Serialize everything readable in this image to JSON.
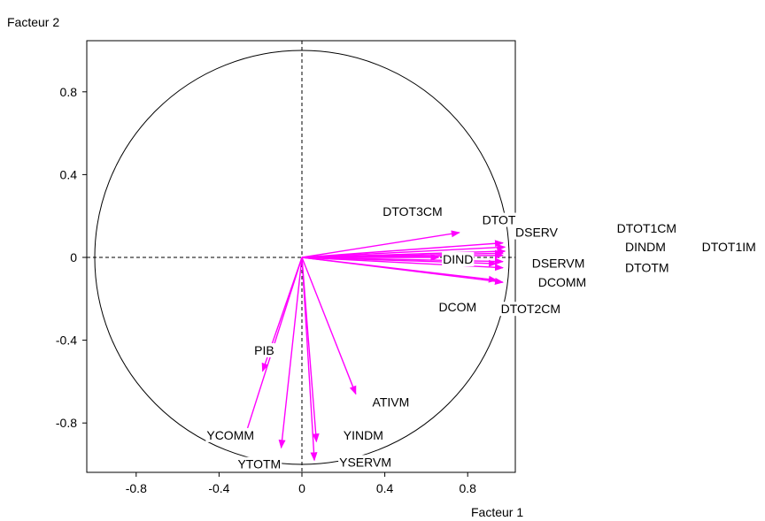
{
  "chart_data": {
    "type": "scatter",
    "subtype": "correlation-circle",
    "title": "",
    "xlabel": "Facteur 1",
    "ylabel": "Facteur 2",
    "xlim": [
      -1.05,
      1.05
    ],
    "ylim": [
      -1.05,
      1.02
    ],
    "xticks": [
      -0.8,
      -0.4,
      0,
      0.4,
      0.8
    ],
    "xtick_labels": [
      "-0.8",
      "-0.4",
      "0",
      "0.4",
      "0.8"
    ],
    "yticks": [
      -0.8,
      -0.4,
      0,
      0.4,
      0.8
    ],
    "ytick_labels": [
      "-0.8",
      "-0.4",
      "0",
      "0.4",
      "0.8"
    ],
    "grid": false,
    "unit_circle": true,
    "arrow_color": "#ff00ff",
    "axis_color": "#000000",
    "variables": [
      {
        "label": "DTOT3CM",
        "x": 0.76,
        "y": 0.12
      },
      {
        "label": "DTOT",
        "x": 0.97,
        "y": 0.07
      },
      {
        "label": "DSERV",
        "x": 0.98,
        "y": 0.05
      },
      {
        "label": "DTOT1CM",
        "x": 0.98,
        "y": 0.03
      },
      {
        "label": "DINDM",
        "x": 0.97,
        "y": 0.02
      },
      {
        "label": "DTOT1IM",
        "x": 0.97,
        "y": 0.01
      },
      {
        "label": "DIND",
        "x": 0.66,
        "y": 0.0
      },
      {
        "label": "DSERVM",
        "x": 0.97,
        "y": -0.02
      },
      {
        "label": "DTOTM",
        "x": 0.94,
        "y": -0.03
      },
      {
        "label": "DCOMM",
        "x": 0.97,
        "y": -0.05
      },
      {
        "label": "DTOT2CM",
        "x": 0.97,
        "y": -0.12
      },
      {
        "label": "DCOM",
        "x": 0.94,
        "y": -0.11
      },
      {
        "label": "PIB",
        "x": -0.19,
        "y": -0.55
      },
      {
        "label": "ATIVM",
        "x": 0.26,
        "y": -0.66
      },
      {
        "label": "YCOMM",
        "x": -0.28,
        "y": -0.88
      },
      {
        "label": "YTOTM",
        "x": -0.1,
        "y": -0.92
      },
      {
        "label": "YINDM",
        "x": 0.07,
        "y": -0.89
      },
      {
        "label": "YSERVM",
        "x": 0.06,
        "y": -0.98
      }
    ],
    "point_labels": [
      {
        "text": "DTOT3CM",
        "x": 0.39,
        "y": 0.2
      },
      {
        "text": "DTOT",
        "x": 0.87,
        "y": 0.16
      },
      {
        "text": "DSERV",
        "x": 1.03,
        "y": 0.1
      },
      {
        "text": "DTOT1CM",
        "x": 1.52,
        "y": 0.12
      },
      {
        "text": "DINDM",
        "x": 1.56,
        "y": 0.03
      },
      {
        "text": "DTOT1IM",
        "x": 1.93,
        "y": 0.03
      },
      {
        "text": "DIND",
        "x": 0.68,
        "y": -0.03
      },
      {
        "text": "DSERVM",
        "x": 1.11,
        "y": -0.05
      },
      {
        "text": "DTOTM",
        "x": 1.56,
        "y": -0.07
      },
      {
        "text": "DCOMM",
        "x": 1.14,
        "y": -0.14
      },
      {
        "text": "DCOM",
        "x": 0.66,
        "y": -0.26
      },
      {
        "text": "DTOT2CM",
        "x": 0.96,
        "y": -0.27
      },
      {
        "text": "PIB",
        "x": -0.23,
        "y": -0.47
      },
      {
        "text": "ATIVM",
        "x": 0.34,
        "y": -0.72
      },
      {
        "text": "YCOMM",
        "x": -0.46,
        "y": -0.88
      },
      {
        "text": "YINDM",
        "x": 0.2,
        "y": -0.88
      },
      {
        "text": "YTOTM",
        "x": -0.31,
        "y": -1.02
      },
      {
        "text": "YSERVM",
        "x": 0.18,
        "y": -1.01
      }
    ]
  }
}
